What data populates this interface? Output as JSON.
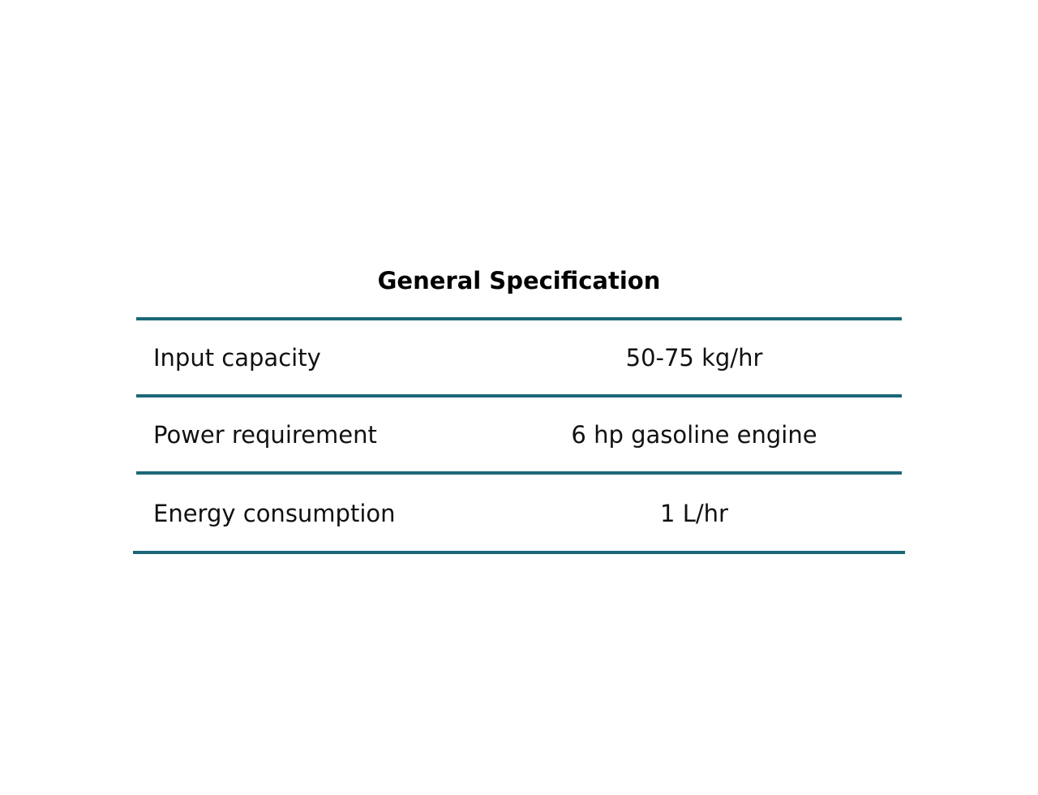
{
  "table": {
    "title": "General Specification",
    "rule_color": "#1b6777",
    "rows": [
      {
        "label": "Input capacity",
        "value": "50-75 kg/hr"
      },
      {
        "label": "Power requirement",
        "value": "6 hp gasoline engine"
      },
      {
        "label": "Energy consumption",
        "value": "1 L/hr"
      }
    ]
  }
}
